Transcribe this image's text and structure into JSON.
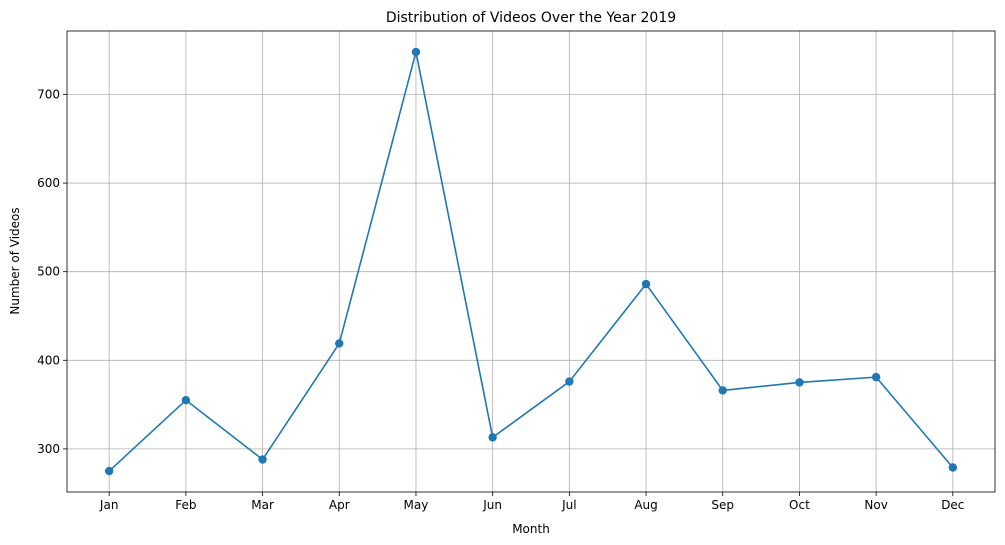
{
  "chart_data": {
    "type": "line",
    "title": "Distribution of Videos Over the Year 2019",
    "xlabel": "Month",
    "ylabel": "Number of Videos",
    "categories": [
      "Jan",
      "Feb",
      "Mar",
      "Apr",
      "May",
      "Jun",
      "Jul",
      "Aug",
      "Sep",
      "Oct",
      "Nov",
      "Dec"
    ],
    "series": [
      {
        "values": [
          275,
          355,
          288,
          419,
          748,
          313,
          376,
          486,
          366,
          375,
          381,
          279
        ],
        "color": "#1f77b4",
        "marker": "circle"
      }
    ],
    "yticks": [
      300,
      400,
      500,
      600,
      700
    ],
    "ylim": [
      251.35,
      771.65
    ],
    "grid": true
  }
}
